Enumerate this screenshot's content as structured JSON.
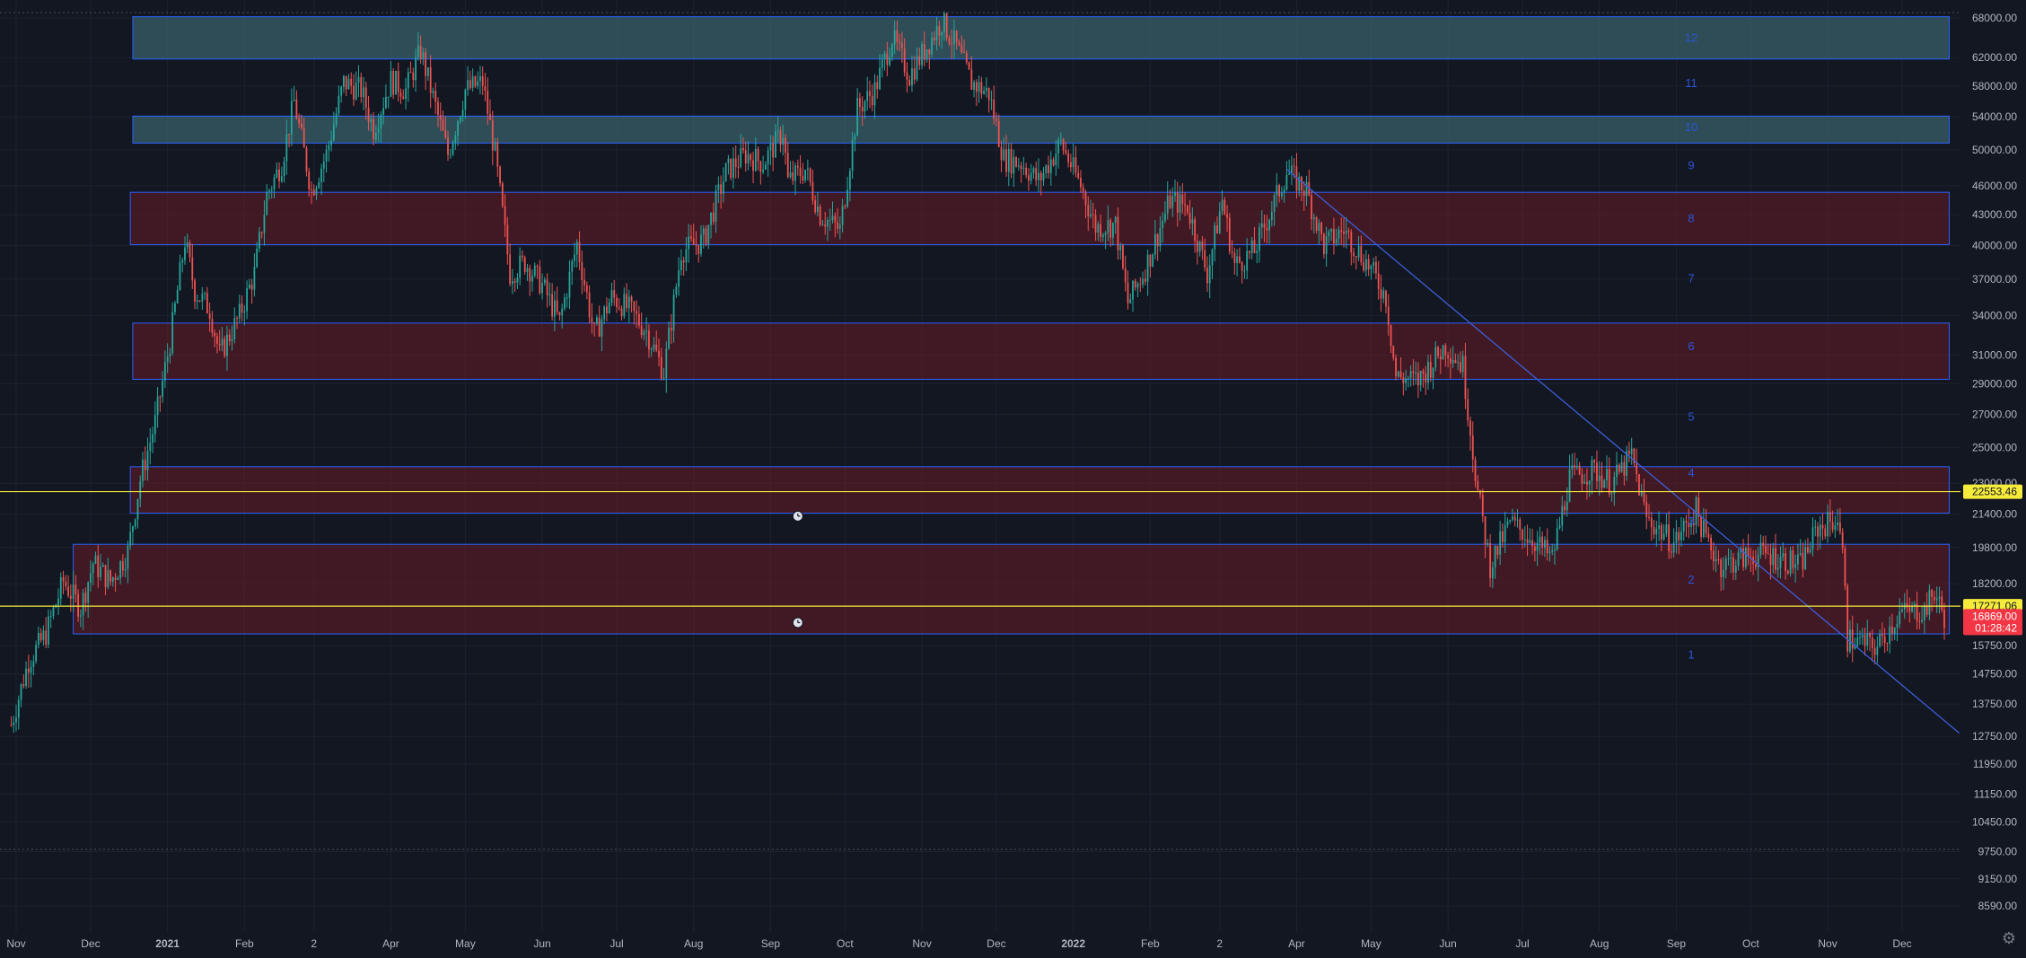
{
  "colors": {
    "background": "#131722",
    "grid": "#1e2230",
    "axis_text": "#b2b5be",
    "up": "#26a69a",
    "down": "#ef5350",
    "zone_red_fill": "rgba(120,28,40,0.45)",
    "zone_teal_fill": "rgba(56,96,106,0.75)",
    "zone_border": "#2962ff",
    "trendline": "#3d5ed8",
    "hline": "#f5eb3b",
    "zone_number": "#2d55d8",
    "price_badge_yellow": "#f5eb3b",
    "price_badge_red": "#f23645"
  },
  "chart_data": {
    "type": "candlestick",
    "title": "",
    "y_scale": "log",
    "ylim": [
      8100,
      68600
    ],
    "y_ticks": [
      "68000.00",
      "62000.00",
      "58000.00",
      "54000.00",
      "50000.00",
      "46000.00",
      "43000.00",
      "40000.00",
      "37000.00",
      "34000.00",
      "31000.00",
      "29000.00",
      "27000.00",
      "25000.00",
      "23000.00",
      "21400.00",
      "19800.00",
      "18200.00",
      "15750.00",
      "14750.00",
      "13750.00",
      "12750.00",
      "11950.00",
      "11150.00",
      "10450.00",
      "9750.00",
      "9150.00",
      "8590.00"
    ],
    "x_range": [
      "2020-11-01",
      "2022-12-20"
    ],
    "x_ticks": [
      {
        "label": "Nov",
        "date": "2020-11-01"
      },
      {
        "label": "Dec",
        "date": "2020-12-01"
      },
      {
        "label": "2021",
        "date": "2021-01-01"
      },
      {
        "label": "Feb",
        "date": "2021-02-01"
      },
      {
        "label": "2",
        "date": "2021-03-01"
      },
      {
        "label": "Apr",
        "date": "2021-04-01"
      },
      {
        "label": "May",
        "date": "2021-05-01"
      },
      {
        "label": "Jun",
        "date": "2021-06-01"
      },
      {
        "label": "Jul",
        "date": "2021-07-01"
      },
      {
        "label": "Aug",
        "date": "2021-08-01"
      },
      {
        "label": "Sep",
        "date": "2021-09-01"
      },
      {
        "label": "Oct",
        "date": "2021-10-01"
      },
      {
        "label": "Nov",
        "date": "2021-11-01"
      },
      {
        "label": "Dec",
        "date": "2021-12-01"
      },
      {
        "label": "2022",
        "date": "2022-01-01"
      },
      {
        "label": "Feb",
        "date": "2022-02-01"
      },
      {
        "label": "2",
        "date": "2022-03-01"
      },
      {
        "label": "Apr",
        "date": "2022-04-01"
      },
      {
        "label": "May",
        "date": "2022-05-01"
      },
      {
        "label": "Jun",
        "date": "2022-06-01"
      },
      {
        "label": "Jul",
        "date": "2022-07-01"
      },
      {
        "label": "Aug",
        "date": "2022-08-01"
      },
      {
        "label": "Sep",
        "date": "2022-09-01"
      },
      {
        "label": "Oct",
        "date": "2022-10-01"
      },
      {
        "label": "Nov",
        "date": "2022-11-01"
      },
      {
        "label": "Dec",
        "date": "2022-12-01"
      }
    ],
    "price_path": [
      [
        "2020-10-30",
        13100
      ],
      [
        "2020-11-06",
        15200
      ],
      [
        "2020-11-13",
        16200
      ],
      [
        "2020-11-20",
        18300
      ],
      [
        "2020-11-27",
        17200
      ],
      [
        "2020-12-02",
        19100
      ],
      [
        "2020-12-09",
        18300
      ],
      [
        "2020-12-16",
        19600
      ],
      [
        "2020-12-21",
        23200
      ],
      [
        "2020-12-27",
        26500
      ],
      [
        "2021-01-02",
        32000
      ],
      [
        "2021-01-08",
        40500
      ],
      [
        "2021-01-12",
        36000
      ],
      [
        "2021-01-18",
        34500
      ],
      [
        "2021-01-22",
        31000
      ],
      [
        "2021-01-30",
        34000
      ],
      [
        "2021-02-05",
        37500
      ],
      [
        "2021-02-10",
        45000
      ],
      [
        "2021-02-16",
        48500
      ],
      [
        "2021-02-21",
        56000
      ],
      [
        "2021-02-28",
        45500
      ],
      [
        "2021-03-06",
        49500
      ],
      [
        "2021-03-13",
        58500
      ],
      [
        "2021-03-20",
        57500
      ],
      [
        "2021-03-25",
        52500
      ],
      [
        "2021-04-01",
        58800
      ],
      [
        "2021-04-07",
        57500
      ],
      [
        "2021-04-13",
        63000
      ],
      [
        "2021-04-18",
        56500
      ],
      [
        "2021-04-24",
        49500
      ],
      [
        "2021-05-01",
        57500
      ],
      [
        "2021-05-08",
        58500
      ],
      [
        "2021-05-13",
        49500
      ],
      [
        "2021-05-19",
        37500
      ],
      [
        "2021-05-25",
        38500
      ],
      [
        "2021-06-01",
        36500
      ],
      [
        "2021-06-08",
        33500
      ],
      [
        "2021-06-15",
        40200
      ],
      [
        "2021-06-22",
        32500
      ],
      [
        "2021-06-29",
        35500
      ],
      [
        "2021-07-06",
        34500
      ],
      [
        "2021-07-13",
        32800
      ],
      [
        "2021-07-20",
        29800
      ],
      [
        "2021-07-27",
        39500
      ],
      [
        "2021-08-05",
        40500
      ],
      [
        "2021-08-14",
        47500
      ],
      [
        "2021-08-22",
        49500
      ],
      [
        "2021-08-29",
        48500
      ],
      [
        "2021-09-06",
        52200
      ],
      [
        "2021-09-08",
        46500
      ],
      [
        "2021-09-15",
        47800
      ],
      [
        "2021-09-21",
        43000
      ],
      [
        "2021-09-29",
        41500
      ],
      [
        "2021-10-06",
        55000
      ],
      [
        "2021-10-13",
        57500
      ],
      [
        "2021-10-20",
        65000
      ],
      [
        "2021-10-27",
        59500
      ],
      [
        "2021-11-02",
        63000
      ],
      [
        "2021-11-09",
        67500
      ],
      [
        "2021-11-15",
        63500
      ],
      [
        "2021-11-21",
        58500
      ],
      [
        "2021-11-28",
        57000
      ],
      [
        "2021-12-04",
        49000
      ],
      [
        "2021-12-11",
        48500
      ],
      [
        "2021-12-18",
        46500
      ],
      [
        "2021-12-27",
        50800
      ],
      [
        "2022-01-04",
        46000
      ],
      [
        "2022-01-10",
        41800
      ],
      [
        "2022-01-18",
        42000
      ],
      [
        "2022-01-23",
        35000
      ],
      [
        "2022-01-30",
        37900
      ],
      [
        "2022-02-09",
        44500
      ],
      [
        "2022-02-16",
        43800
      ],
      [
        "2022-02-24",
        37500
      ],
      [
        "2022-03-02",
        44500
      ],
      [
        "2022-03-07",
        38200
      ],
      [
        "2022-03-15",
        39500
      ],
      [
        "2022-03-28",
        47500
      ],
      [
        "2022-04-05",
        45500
      ],
      [
        "2022-04-12",
        40000
      ],
      [
        "2022-04-20",
        41500
      ],
      [
        "2022-04-30",
        38200
      ],
      [
        "2022-05-07",
        35500
      ],
      [
        "2022-05-11",
        29500
      ],
      [
        "2022-05-20",
        29200
      ],
      [
        "2022-05-31",
        31700
      ],
      [
        "2022-06-07",
        30200
      ],
      [
        "2022-06-13",
        22500
      ],
      [
        "2022-06-18",
        19000
      ],
      [
        "2022-06-26",
        21000
      ],
      [
        "2022-07-05",
        20200
      ],
      [
        "2022-07-13",
        19300
      ],
      [
        "2022-07-20",
        23300
      ],
      [
        "2022-07-30",
        23700
      ],
      [
        "2022-08-06",
        23000
      ],
      [
        "2022-08-14",
        24500
      ],
      [
        "2022-08-20",
        21200
      ],
      [
        "2022-08-31",
        20000
      ],
      [
        "2022-09-09",
        21600
      ],
      [
        "2022-09-13",
        20200
      ],
      [
        "2022-09-19",
        19000
      ],
      [
        "2022-09-30",
        19400
      ],
      [
        "2022-10-08",
        19500
      ],
      [
        "2022-10-21",
        19000
      ],
      [
        "2022-10-28",
        20700
      ],
      [
        "2022-11-05",
        21200
      ],
      [
        "2022-11-08",
        18500
      ],
      [
        "2022-11-09",
        16000
      ],
      [
        "2022-11-21",
        15700
      ],
      [
        "2022-11-30",
        17000
      ],
      [
        "2022-12-10",
        17100
      ],
      [
        "2022-12-14",
        17800
      ],
      [
        "2022-12-18",
        16869
      ]
    ],
    "zones": [
      {
        "number": "1",
        "number_price": 15450,
        "low": 16190,
        "high": 19950,
        "x_start": "2020-11-24",
        "x_end": "2022-12-20",
        "fill": "red"
      },
      {
        "number": "2",
        "number_price": 18400,
        "low": null,
        "high": null,
        "x_start": null,
        "x_end": null,
        "fill": "none"
      },
      {
        "number": "3",
        "number_price": 21100,
        "low": 21450,
        "high": 23900,
        "x_start": "2020-12-17",
        "x_end": "2022-12-20",
        "fill": "red"
      },
      {
        "number": "4",
        "number_price": 23600,
        "low": null,
        "high": null,
        "x_start": null,
        "x_end": null,
        "fill": "none"
      },
      {
        "number": "5",
        "number_price": 26900,
        "low": null,
        "high": null,
        "x_start": null,
        "x_end": null,
        "fill": "none"
      },
      {
        "number": "6",
        "number_price": 31700,
        "low": 29300,
        "high": 33400,
        "x_start": "2020-12-18",
        "x_end": "2022-12-20",
        "fill": "red"
      },
      {
        "number": "7",
        "number_price": 37100,
        "low": null,
        "high": null,
        "x_start": null,
        "x_end": null,
        "fill": "none"
      },
      {
        "number": "8",
        "number_price": 42700,
        "low": 40100,
        "high": 45300,
        "x_start": "2020-12-17",
        "x_end": "2022-12-20",
        "fill": "red"
      },
      {
        "number": "9",
        "number_price": 48300,
        "low": null,
        "high": null,
        "x_start": null,
        "x_end": null,
        "fill": "none"
      },
      {
        "number": "10",
        "number_price": 52800,
        "low": 50800,
        "high": 54100,
        "x_start": "2020-12-18",
        "x_end": "2022-12-20",
        "fill": "teal"
      },
      {
        "number": "11",
        "number_price": 58500,
        "low": null,
        "high": null,
        "x_start": null,
        "x_end": null,
        "fill": "none"
      },
      {
        "number": "12",
        "number_price": 65000,
        "low": 61800,
        "high": 68200,
        "x_start": "2020-12-18",
        "x_end": "2022-12-20",
        "fill": "teal"
      }
    ],
    "trendline": {
      "start": [
        "2022-03-28",
        47800
      ],
      "end": [
        "2022-12-24",
        12850
      ]
    },
    "horizontal_lines": [
      {
        "price": 22553.46,
        "label": "22553.46"
      },
      {
        "price": 17271.06,
        "label": "17271.06"
      }
    ],
    "alerts": [
      {
        "date": "2021-09-12",
        "price": 21300
      },
      {
        "date": "2021-09-12",
        "price": 16620
      }
    ],
    "last_price": {
      "price": 16869.0,
      "label": "16869.00",
      "countdown": "01:28:42"
    }
  }
}
